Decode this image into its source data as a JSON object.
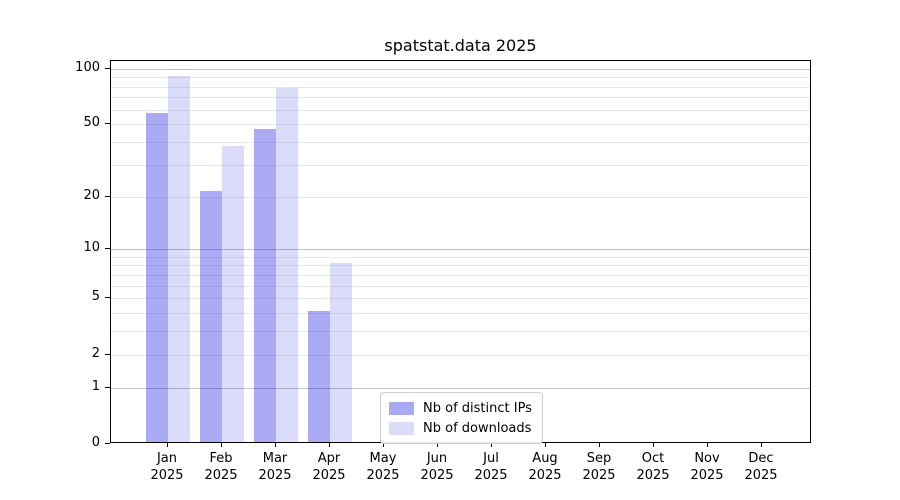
{
  "figure": {
    "title": "spatstat.data 2025"
  },
  "chart_data": {
    "type": "bar",
    "title": "spatstat.data 2025",
    "categories": [
      "Jan",
      "Feb",
      "Mar",
      "Apr",
      "May",
      "Jun",
      "Jul",
      "Aug",
      "Sep",
      "Oct",
      "Nov",
      "Dec"
    ],
    "category_year": "2025",
    "series": [
      {
        "name": "Nb of distinct IPs",
        "color": "#a9a9f4",
        "css": "rgba(0,0,225,0.33)",
        "values": [
          56,
          21,
          46,
          4,
          0,
          0,
          0,
          0,
          0,
          0,
          0,
          0
        ]
      },
      {
        "name": "Nb of downloads",
        "color": "#dcdcfa",
        "css": "rgba(0,0,222,0.14)",
        "values": [
          89,
          37,
          77,
          8,
          0,
          0,
          0,
          0,
          0,
          0,
          0,
          0
        ]
      }
    ],
    "xlabel": "",
    "ylabel": "",
    "yscale": "log1p",
    "ylim": [
      0,
      110
    ],
    "ytick_labels": [
      "100",
      "50",
      "20",
      "10",
      "5",
      "2",
      "1",
      "0"
    ],
    "ytick_values": [
      100,
      50,
      20,
      10,
      5,
      2,
      1,
      0
    ],
    "gridlines_major": [
      1,
      10,
      100
    ],
    "gridlines_minor": [
      2,
      3,
      4,
      5,
      6,
      7,
      8,
      9,
      20,
      30,
      40,
      50,
      60,
      70,
      80,
      90
    ],
    "grid_major_color": "#c3c3c3",
    "grid_minor_color": "#eaeaea",
    "grid_on": true,
    "legend_position": "lower center (inside plot)",
    "legend_entries": [
      "Nb of distinct IPs",
      "Nb of downloads"
    ]
  }
}
